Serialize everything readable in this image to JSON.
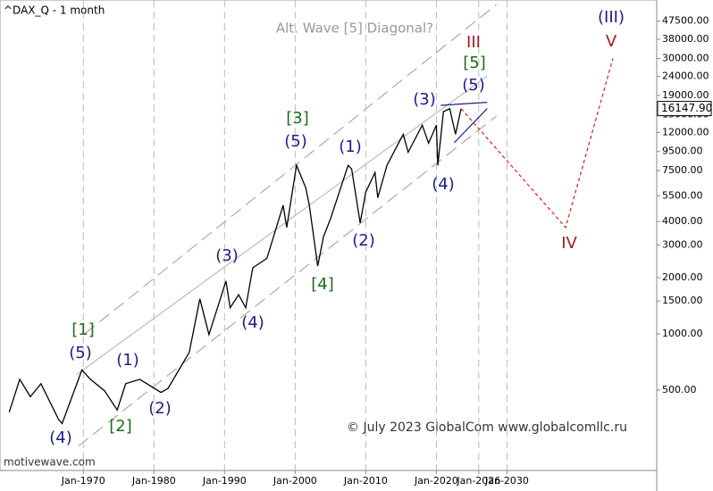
{
  "chart_data": {
    "type": "line",
    "title": "^DAX_Q - 1 month",
    "subtitle": "Alt. Wave [5] Diagonal?",
    "annotation": "© July 2023 GlobalCom www.globalcomllc.ru",
    "source": "motivewave.com",
    "log_y": true,
    "grid": true,
    "color": "#000000",
    "x": [
      1959.5,
      1961,
      1962.5,
      1964,
      1966.5,
      1967,
      1969.8,
      1971,
      1973,
      1974.8,
      1976,
      1978,
      1981,
      1982,
      1985,
      1986.5,
      1987.8,
      1990.2,
      1990.8,
      1992,
      1993,
      1994,
      1996,
      1998.3,
      1998.8,
      2000.2,
      2001.5,
      2002,
      2003.2,
      2004,
      2005,
      2007.5,
      2008,
      2009.2,
      2010,
      2011.3,
      2011.7,
      2013,
      2015.3,
      2016,
      2018,
      2018.9,
      2020,
      2020.2,
      2021,
      2021.9,
      2022.7,
      2023.5
    ],
    "values": [
      380,
      570,
      460,
      540,
      347,
      330,
      640,
      570,
      495,
      390,
      540,
      570,
      485,
      510,
      795,
      1540,
      990,
      1920,
      1380,
      1620,
      1380,
      2260,
      2540,
      4890,
      3720,
      8010,
      6070,
      4890,
      2310,
      3310,
      4140,
      8010,
      7650,
      3930,
      5760,
      7330,
      5370,
      8010,
      11760,
      9420,
      13150,
      10530,
      13150,
      8010,
      15560,
      16120,
      11760,
      16147.9
    ],
    "last_price": {
      "value": 16147.9,
      "label": "16147.90"
    },
    "xlim": [
      1958.2,
      2051.2
    ],
    "xticks": [
      {
        "value": 1970,
        "label": "Jan-1970"
      },
      {
        "value": 1980,
        "label": "Jan-1980"
      },
      {
        "value": 1990,
        "label": "Jan-1990"
      },
      {
        "value": 2000,
        "label": "Jan-2000"
      },
      {
        "value": 2010,
        "label": "Jan-2010"
      },
      {
        "value": 2020,
        "label": "Jan-2020"
      },
      {
        "value": 2026,
        "label": "Jan-2026"
      },
      {
        "value": 2030,
        "label": "Jan-2030"
      }
    ],
    "ylim": [
      185,
      61700
    ],
    "yticks": [
      {
        "value": 500,
        "label": "500.00"
      },
      {
        "value": 1000,
        "label": "1000.00"
      },
      {
        "value": 1500,
        "label": "1500.00"
      },
      {
        "value": 2000,
        "label": "2000.00"
      },
      {
        "value": 3000,
        "label": "3000.00"
      },
      {
        "value": 4000,
        "label": "4000.00"
      },
      {
        "value": 5500,
        "label": "5500.00"
      },
      {
        "value": 7500,
        "label": "7500.00"
      },
      {
        "value": 9500,
        "label": "9500.00"
      },
      {
        "value": 12000,
        "label": "12000.00"
      },
      {
        "value": 15000,
        "label": "15000.00"
      },
      {
        "value": 19000,
        "label": "19000.00"
      },
      {
        "value": 24000,
        "label": "24000.00"
      },
      {
        "value": 30000,
        "label": "30000.00"
      },
      {
        "value": 38000,
        "label": "38000.00"
      },
      {
        "value": 47500,
        "label": "47500.00"
      }
    ],
    "projection": {
      "color": "#e02020",
      "x": [
        2023.5,
        2038.3,
        2045
      ],
      "values": [
        16147.9,
        3720,
        30000
      ]
    },
    "channels": [
      {
        "style": "dashed",
        "color": "#aaaaaa",
        "x": [
          1970.2,
          2028.5
        ],
        "values": [
          1000,
          58300
        ]
      },
      {
        "style": "solid",
        "color": "#bbbbbb",
        "x": [
          1969,
          2027.2
        ],
        "values": [
          603,
          24150
        ]
      },
      {
        "style": "dashed",
        "color": "#aaaaaa",
        "x": [
          1969.3,
          2028.5
        ],
        "values": [
          250,
          14720
        ]
      },
      {
        "style": "solid",
        "color": "#1c1c8c",
        "x": [
          2020.6,
          2027.2
        ],
        "values": [
          16800,
          17450
        ]
      },
      {
        "style": "solid",
        "color": "#1c1c8c",
        "x": [
          2022.5,
          2027.2
        ],
        "values": [
          10570,
          16150
        ]
      }
    ],
    "wave_labels": [
      {
        "text": "(4)",
        "color": "#1c1c8c"
      },
      {
        "text": "(5)",
        "color": "#1c1c8c"
      },
      {
        "text": "[1]",
        "color": "#1a6e1a"
      },
      {
        "text": "(1)",
        "color": "#1c1c8c"
      },
      {
        "text": "[2]",
        "color": "#1a6e1a"
      },
      {
        "text": "(2)",
        "color": "#1c1c8c"
      },
      {
        "text": "(3)",
        "color": "#1c1c8c"
      },
      {
        "text": "(4)",
        "color": "#1c1c8c"
      },
      {
        "text": "[3]",
        "color": "#1a6e1a"
      },
      {
        "text": "(5)",
        "color": "#1c1c8c"
      },
      {
        "text": "[4]",
        "color": "#1a6e1a"
      },
      {
        "text": "(1)",
        "color": "#1c1c8c"
      },
      {
        "text": "(2)",
        "color": "#1c1c8c"
      },
      {
        "text": "(3)",
        "color": "#1c1c8c"
      },
      {
        "text": "(4)",
        "color": "#1c1c8c"
      },
      {
        "text": "III",
        "color": "#a01c1c"
      },
      {
        "text": "[5]",
        "color": "#1a6e1a"
      },
      {
        "text": "(5)",
        "color": "#1c1c8c"
      },
      {
        "text": "IV",
        "color": "#a01c1c"
      },
      {
        "text": "(III)",
        "color": "#1c1c8c"
      },
      {
        "text": "V",
        "color": "#a01c1c"
      }
    ]
  }
}
